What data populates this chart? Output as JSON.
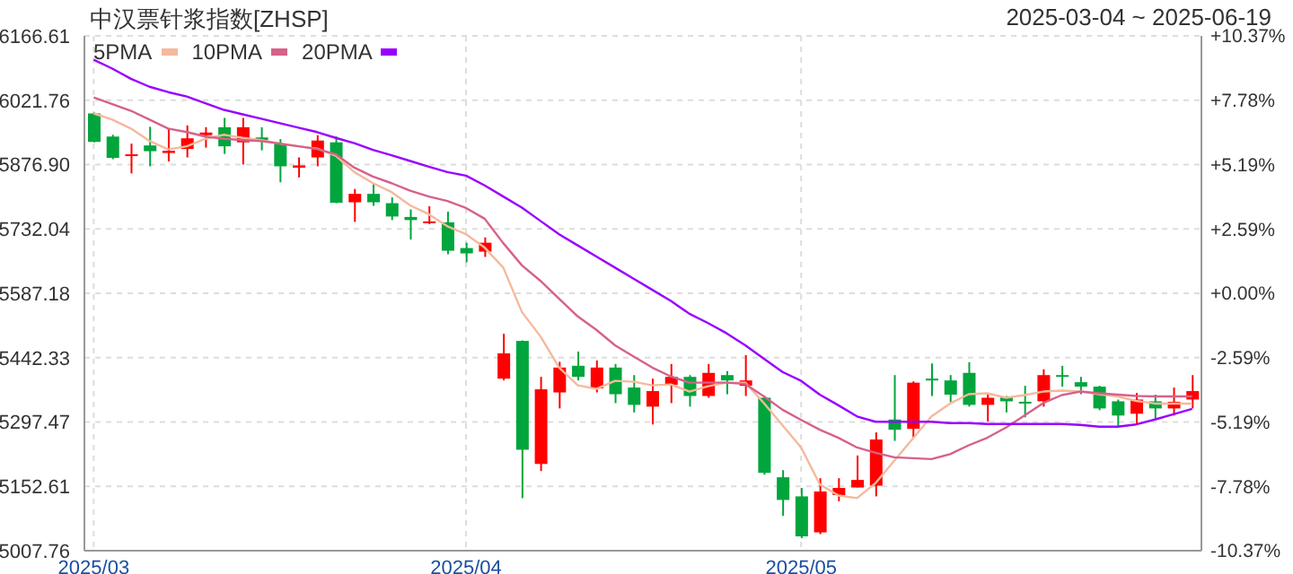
{
  "chart_data": {
    "type": "candlestick",
    "title": "中汉票针浆指数[ZHSP]",
    "subtitle": "2025-03-04 ~ 2025-06-19",
    "categories": [
      "2025/03",
      null,
      null,
      null,
      null,
      null,
      null,
      null,
      null,
      null,
      null,
      null,
      null,
      null,
      null,
      null,
      null,
      null,
      null,
      null,
      "2025/04",
      null,
      null,
      null,
      null,
      null,
      null,
      null,
      null,
      null,
      null,
      null,
      null,
      null,
      null,
      null,
      null,
      null,
      "2025/05",
      null,
      null,
      null,
      null,
      null,
      null,
      null,
      null,
      null,
      null,
      null,
      null,
      null,
      null,
      null,
      null,
      null,
      null,
      null,
      null,
      null
    ],
    "ohlc": [
      [
        5992,
        5994,
        5927,
        5928
      ],
      [
        5940,
        5944,
        5889,
        5892
      ],
      [
        5896,
        5924,
        5857,
        5900
      ],
      [
        5920,
        5962,
        5873,
        5907
      ],
      [
        5903,
        5958,
        5884,
        5908
      ],
      [
        5912,
        5965,
        5893,
        5936
      ],
      [
        5943,
        5961,
        5915,
        5949
      ],
      [
        5961,
        5982,
        5901,
        5918
      ],
      [
        5927,
        5982,
        5877,
        5961
      ],
      [
        5938,
        5961,
        5909,
        5932
      ],
      [
        5924,
        5934,
        5837,
        5873
      ],
      [
        5870,
        5893,
        5848,
        5875
      ],
      [
        5893,
        5943,
        5873,
        5931
      ],
      [
        5927,
        5940,
        5790,
        5791
      ],
      [
        5792,
        5822,
        5748,
        5811
      ],
      [
        5811,
        5833,
        5784,
        5792
      ],
      [
        5790,
        5803,
        5752,
        5760
      ],
      [
        5759,
        5776,
        5708,
        5752
      ],
      [
        5745,
        5783,
        5743,
        5749
      ],
      [
        5747,
        5771,
        5675,
        5683
      ],
      [
        5689,
        5701,
        5657,
        5677
      ],
      [
        5681,
        5713,
        5669,
        5701
      ],
      [
        5395,
        5496,
        5391,
        5452
      ],
      [
        5480,
        5481,
        5126,
        5235
      ],
      [
        5203,
        5399,
        5187,
        5371
      ],
      [
        5364,
        5433,
        5328,
        5420
      ],
      [
        5424,
        5456,
        5391,
        5399
      ],
      [
        5373,
        5436,
        5364,
        5420
      ],
      [
        5420,
        5428,
        5340,
        5360
      ],
      [
        5375,
        5403,
        5319,
        5336
      ],
      [
        5332,
        5395,
        5292,
        5367
      ],
      [
        5381,
        5428,
        5340,
        5399
      ],
      [
        5399,
        5403,
        5332,
        5356
      ],
      [
        5356,
        5428,
        5352,
        5408
      ],
      [
        5403,
        5412,
        5360,
        5391
      ],
      [
        5379,
        5448,
        5356,
        5391
      ],
      [
        5352,
        5356,
        5179,
        5183
      ],
      [
        5173,
        5189,
        5086,
        5122
      ],
      [
        5130,
        5149,
        5036,
        5040
      ],
      [
        5049,
        5171,
        5045,
        5141
      ],
      [
        5133,
        5171,
        5119,
        5149
      ],
      [
        5150,
        5222,
        5150,
        5167
      ],
      [
        5154,
        5274,
        5130,
        5258
      ],
      [
        5303,
        5403,
        5255,
        5280
      ],
      [
        5282,
        5389,
        5262,
        5386
      ],
      [
        5395,
        5429,
        5356,
        5391
      ],
      [
        5391,
        5403,
        5342,
        5359
      ],
      [
        5408,
        5432,
        5332,
        5336
      ],
      [
        5336,
        5360,
        5298,
        5352
      ],
      [
        5355,
        5356,
        5319,
        5344
      ],
      [
        5343,
        5379,
        5308,
        5340
      ],
      [
        5344,
        5416,
        5332,
        5403
      ],
      [
        5403,
        5424,
        5377,
        5399
      ],
      [
        5387,
        5399,
        5360,
        5377
      ],
      [
        5377,
        5379,
        5324,
        5328
      ],
      [
        5344,
        5348,
        5286,
        5312
      ],
      [
        5316,
        5363,
        5292,
        5348
      ],
      [
        5344,
        5359,
        5304,
        5328
      ],
      [
        5328,
        5375,
        5312,
        5343
      ],
      [
        5348,
        5403,
        5328,
        5367
      ]
    ],
    "colors": [
      "#00a53c",
      "#00a53c",
      "#ff0000",
      "#00a53c",
      "#ff0000",
      "#ff0000",
      "#ff0000",
      "#00a53c",
      "#ff0000",
      "#00a53c",
      "#00a53c",
      "#ff0000",
      "#ff0000",
      "#00a53c",
      "#ff0000",
      "#00a53c",
      "#00a53c",
      "#00a53c",
      "#ff0000",
      "#00a53c",
      "#00a53c",
      "#ff0000",
      "#ff0000",
      "#00a53c",
      "#ff0000",
      "#ff0000",
      "#00a53c",
      "#ff0000",
      "#00a53c",
      "#00a53c",
      "#ff0000",
      "#ff0000",
      "#00a53c",
      "#ff0000",
      "#00a53c",
      "#ff0000",
      "#00a53c",
      "#00a53c",
      "#00a53c",
      "#ff0000",
      "#ff0000",
      "#ff0000",
      "#ff0000",
      "#00a53c",
      "#ff0000",
      "#00a53c",
      "#00a53c",
      "#00a53c",
      "#ff0000",
      "#00a53c",
      "#00a53c",
      "#ff0000",
      "#00a53c",
      "#00a53c",
      "#00a53c",
      "#00a53c",
      "#ff0000",
      "#00a53c",
      "#ff0000",
      "#ff0000"
    ],
    "series": [
      {
        "name": "5PMA",
        "type": "line",
        "color": "#f5b99c",
        "values": [
          5992,
          5978,
          5958,
          5930,
          5911,
          5918,
          5935,
          5944,
          5937,
          5932,
          5924,
          5918,
          5913,
          5897,
          5860,
          5835,
          5815,
          5785,
          5765,
          5738,
          5720,
          5690,
          5645,
          5545,
          5490,
          5420,
          5380,
          5372,
          5390,
          5388,
          5380,
          5382,
          5366,
          5378,
          5386,
          5386,
          5340,
          5290,
          5240,
          5157,
          5132,
          5126,
          5160,
          5210,
          5260,
          5310,
          5339,
          5360,
          5362,
          5352,
          5358,
          5366,
          5368,
          5366,
          5360,
          5355,
          5345,
          5339,
          5339,
          5339
        ]
      },
      {
        "name": "10PMA",
        "type": "line",
        "color": "#d6618a",
        "values": [
          6028,
          6013,
          5998,
          5978,
          5958,
          5950,
          5940,
          5935,
          5932,
          5930,
          5924,
          5918,
          5912,
          5900,
          5870,
          5850,
          5835,
          5818,
          5805,
          5795,
          5779,
          5755,
          5700,
          5650,
          5615,
          5575,
          5535,
          5505,
          5470,
          5445,
          5420,
          5400,
          5386,
          5386,
          5386,
          5383,
          5355,
          5325,
          5302,
          5280,
          5262,
          5240,
          5228,
          5218,
          5216,
          5214,
          5225,
          5245,
          5262,
          5285,
          5312,
          5340,
          5358,
          5366,
          5362,
          5359,
          5356,
          5355,
          5355,
          5355
        ]
      },
      {
        "name": "20PMA",
        "type": "line",
        "color": "#9900ff",
        "values": [
          6113,
          6093,
          6070,
          6052,
          6040,
          6030,
          6015,
          6000,
          5990,
          5980,
          5970,
          5960,
          5950,
          5937,
          5925,
          5910,
          5898,
          5885,
          5872,
          5860,
          5852,
          5830,
          5805,
          5780,
          5750,
          5720,
          5695,
          5670,
          5645,
          5620,
          5595,
          5570,
          5541,
          5520,
          5497,
          5470,
          5440,
          5410,
          5390,
          5359,
          5335,
          5310,
          5298,
          5298,
          5298,
          5298,
          5295,
          5295,
          5293,
          5293,
          5293,
          5293,
          5293,
          5291,
          5287,
          5287,
          5292,
          5303,
          5315,
          5327
        ]
      }
    ],
    "ylim": [
      5007.76,
      6166.61
    ],
    "yticks": [
      5007.76,
      5152.61,
      5297.47,
      5442.33,
      5587.18,
      5732.04,
      {
        "value": 5876.9,
        "label": "5876.90"
      },
      6021.76,
      6166.61
    ],
    "y2lim": [
      -10.37,
      10.37
    ],
    "y2ticks": [
      {
        "value": -10.37,
        "label": "-10.37%"
      },
      {
        "value": -7.78,
        "label": "-7.78%"
      },
      {
        "value": -5.19,
        "label": "-5.19%"
      },
      {
        "value": -2.59,
        "label": "-2.59%"
      },
      {
        "value": 0,
        "label": "+0.00%"
      },
      {
        "value": 2.59,
        "label": "+2.59%"
      },
      {
        "value": 5.19,
        "label": "+5.19%"
      },
      {
        "value": 7.78,
        "label": "+7.78%"
      },
      {
        "value": 10.37,
        "label": "+10.37%"
      }
    ],
    "grid": true,
    "legend": "top left",
    "marker": "none"
  }
}
